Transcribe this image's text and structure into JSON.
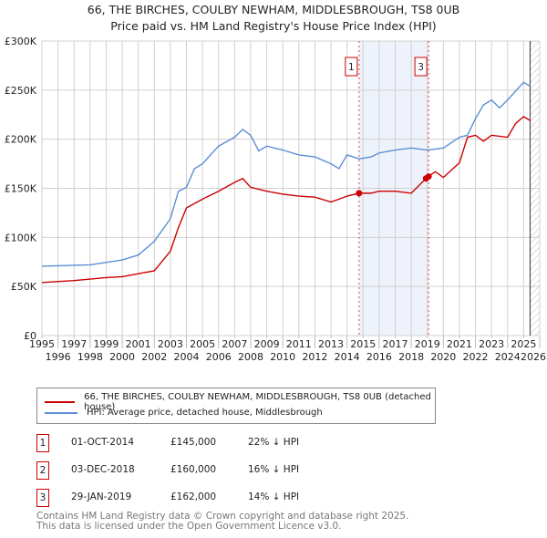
{
  "chart_data": {
    "type": "line",
    "title": "66, THE BIRCHES, COULBY NEWHAM, MIDDLESBROUGH, TS8 0UB",
    "subtitle": "Price paid vs. HM Land Registry's House Price Index (HPI)",
    "xlim": [
      1995,
      2026
    ],
    "ylim": [
      0,
      300000
    ],
    "y_ticks": [
      {
        "v": 0,
        "label": "£0"
      },
      {
        "v": 50000,
        "label": "£50K"
      },
      {
        "v": 100000,
        "label": "£100K"
      },
      {
        "v": 150000,
        "label": "£150K"
      },
      {
        "v": 200000,
        "label": "£200K"
      },
      {
        "v": 250000,
        "label": "£250K"
      },
      {
        "v": 300000,
        "label": "£300K"
      }
    ],
    "x_ticks": [
      "1995",
      "1996",
      "1997",
      "1998",
      "1999",
      "2000",
      "2001",
      "2002",
      "2003",
      "2004",
      "2005",
      "2006",
      "2007",
      "2008",
      "2009",
      "2010",
      "2011",
      "2012",
      "2013",
      "2014",
      "2015",
      "2016",
      "2017",
      "2018",
      "2019",
      "2020",
      "2021",
      "2022",
      "2023",
      "2024",
      "2025",
      "2026"
    ],
    "grid": true,
    "series": [
      {
        "name": "66, THE BIRCHES, COULBY NEWHAM, MIDDLESBROUGH, TS8 0UB (detached house)",
        "color": "#cc0000",
        "x": [
          1995,
          1997,
          1999,
          2000,
          2001,
          2002,
          2003,
          2003.5,
          2004,
          2005,
          2006,
          2007,
          2007.5,
          2008,
          2009,
          2010,
          2011,
          2012,
          2013,
          2014,
          2014.75,
          2015.5,
          2016,
          2017,
          2018,
          2018.92,
          2019.08,
          2019.5,
          2020,
          2021,
          2021.5,
          2022,
          2022.5,
          2023,
          2024,
          2024.5,
          2025,
          2025.4
        ],
        "y": [
          54000,
          56000,
          59000,
          60000,
          63000,
          66000,
          86000,
          110000,
          130000,
          139000,
          147000,
          156000,
          160000,
          151000,
          147000,
          144000,
          142000,
          141000,
          136000,
          142000,
          145000,
          145000,
          147000,
          147000,
          145000,
          160000,
          162000,
          167000,
          161000,
          176000,
          202000,
          204000,
          198000,
          204000,
          202000,
          216000,
          223000,
          219000
        ]
      },
      {
        "name": "HPI: Average price, detached house, Middlesbrough",
        "color": "#5b8fd4",
        "x": [
          1995,
          1998,
          2000,
          2001,
          2002,
          2003,
          2003.5,
          2004,
          2004.5,
          2005,
          2006,
          2007,
          2007.5,
          2008,
          2008.5,
          2009,
          2010,
          2011,
          2012,
          2013,
          2013.5,
          2014,
          2014.75,
          2015.5,
          2016,
          2017,
          2018,
          2019,
          2020,
          2021,
          2021.5,
          2022,
          2022.5,
          2023,
          2023.5,
          2024,
          2024.5,
          2025,
          2025.4
        ],
        "y": [
          70600,
          72000,
          77000,
          82000,
          96000,
          119000,
          147000,
          151000,
          170000,
          175000,
          193000,
          202000,
          210000,
          204000,
          188000,
          193000,
          189000,
          184000,
          182000,
          175000,
          170000,
          184000,
          180000,
          182000,
          186000,
          189000,
          191000,
          189000,
          191000,
          202000,
          204000,
          221000,
          235000,
          240000,
          232000,
          240000,
          249000,
          258000,
          254000
        ]
      }
    ],
    "annotations": [
      {
        "label": "1",
        "x": 2014.75
      },
      {
        "label": "3",
        "x": 2019.08
      }
    ],
    "sale_points": [
      {
        "x": 2014.75,
        "y": 145000
      },
      {
        "x": 2018.92,
        "y": 160000
      },
      {
        "x": 2019.08,
        "y": 162000
      }
    ]
  },
  "legend": {
    "red": "66, THE BIRCHES, COULBY NEWHAM, MIDDLESBROUGH, TS8 0UB (detached house)",
    "blue": "HPI: Average price, detached house, Middlesbrough"
  },
  "transactions": [
    {
      "num": "1",
      "date": "01-OCT-2014",
      "price": "£145,000",
      "hpi": "22% ↓ HPI"
    },
    {
      "num": "2",
      "date": "03-DEC-2018",
      "price": "£160,000",
      "hpi": "16% ↓ HPI"
    },
    {
      "num": "3",
      "date": "29-JAN-2019",
      "price": "£162,000",
      "hpi": "14% ↓ HPI"
    }
  ],
  "footer": {
    "line1": "Contains HM Land Registry data © Crown copyright and database right 2025.",
    "line2": "This data is licensed under the Open Government Licence v3.0."
  }
}
